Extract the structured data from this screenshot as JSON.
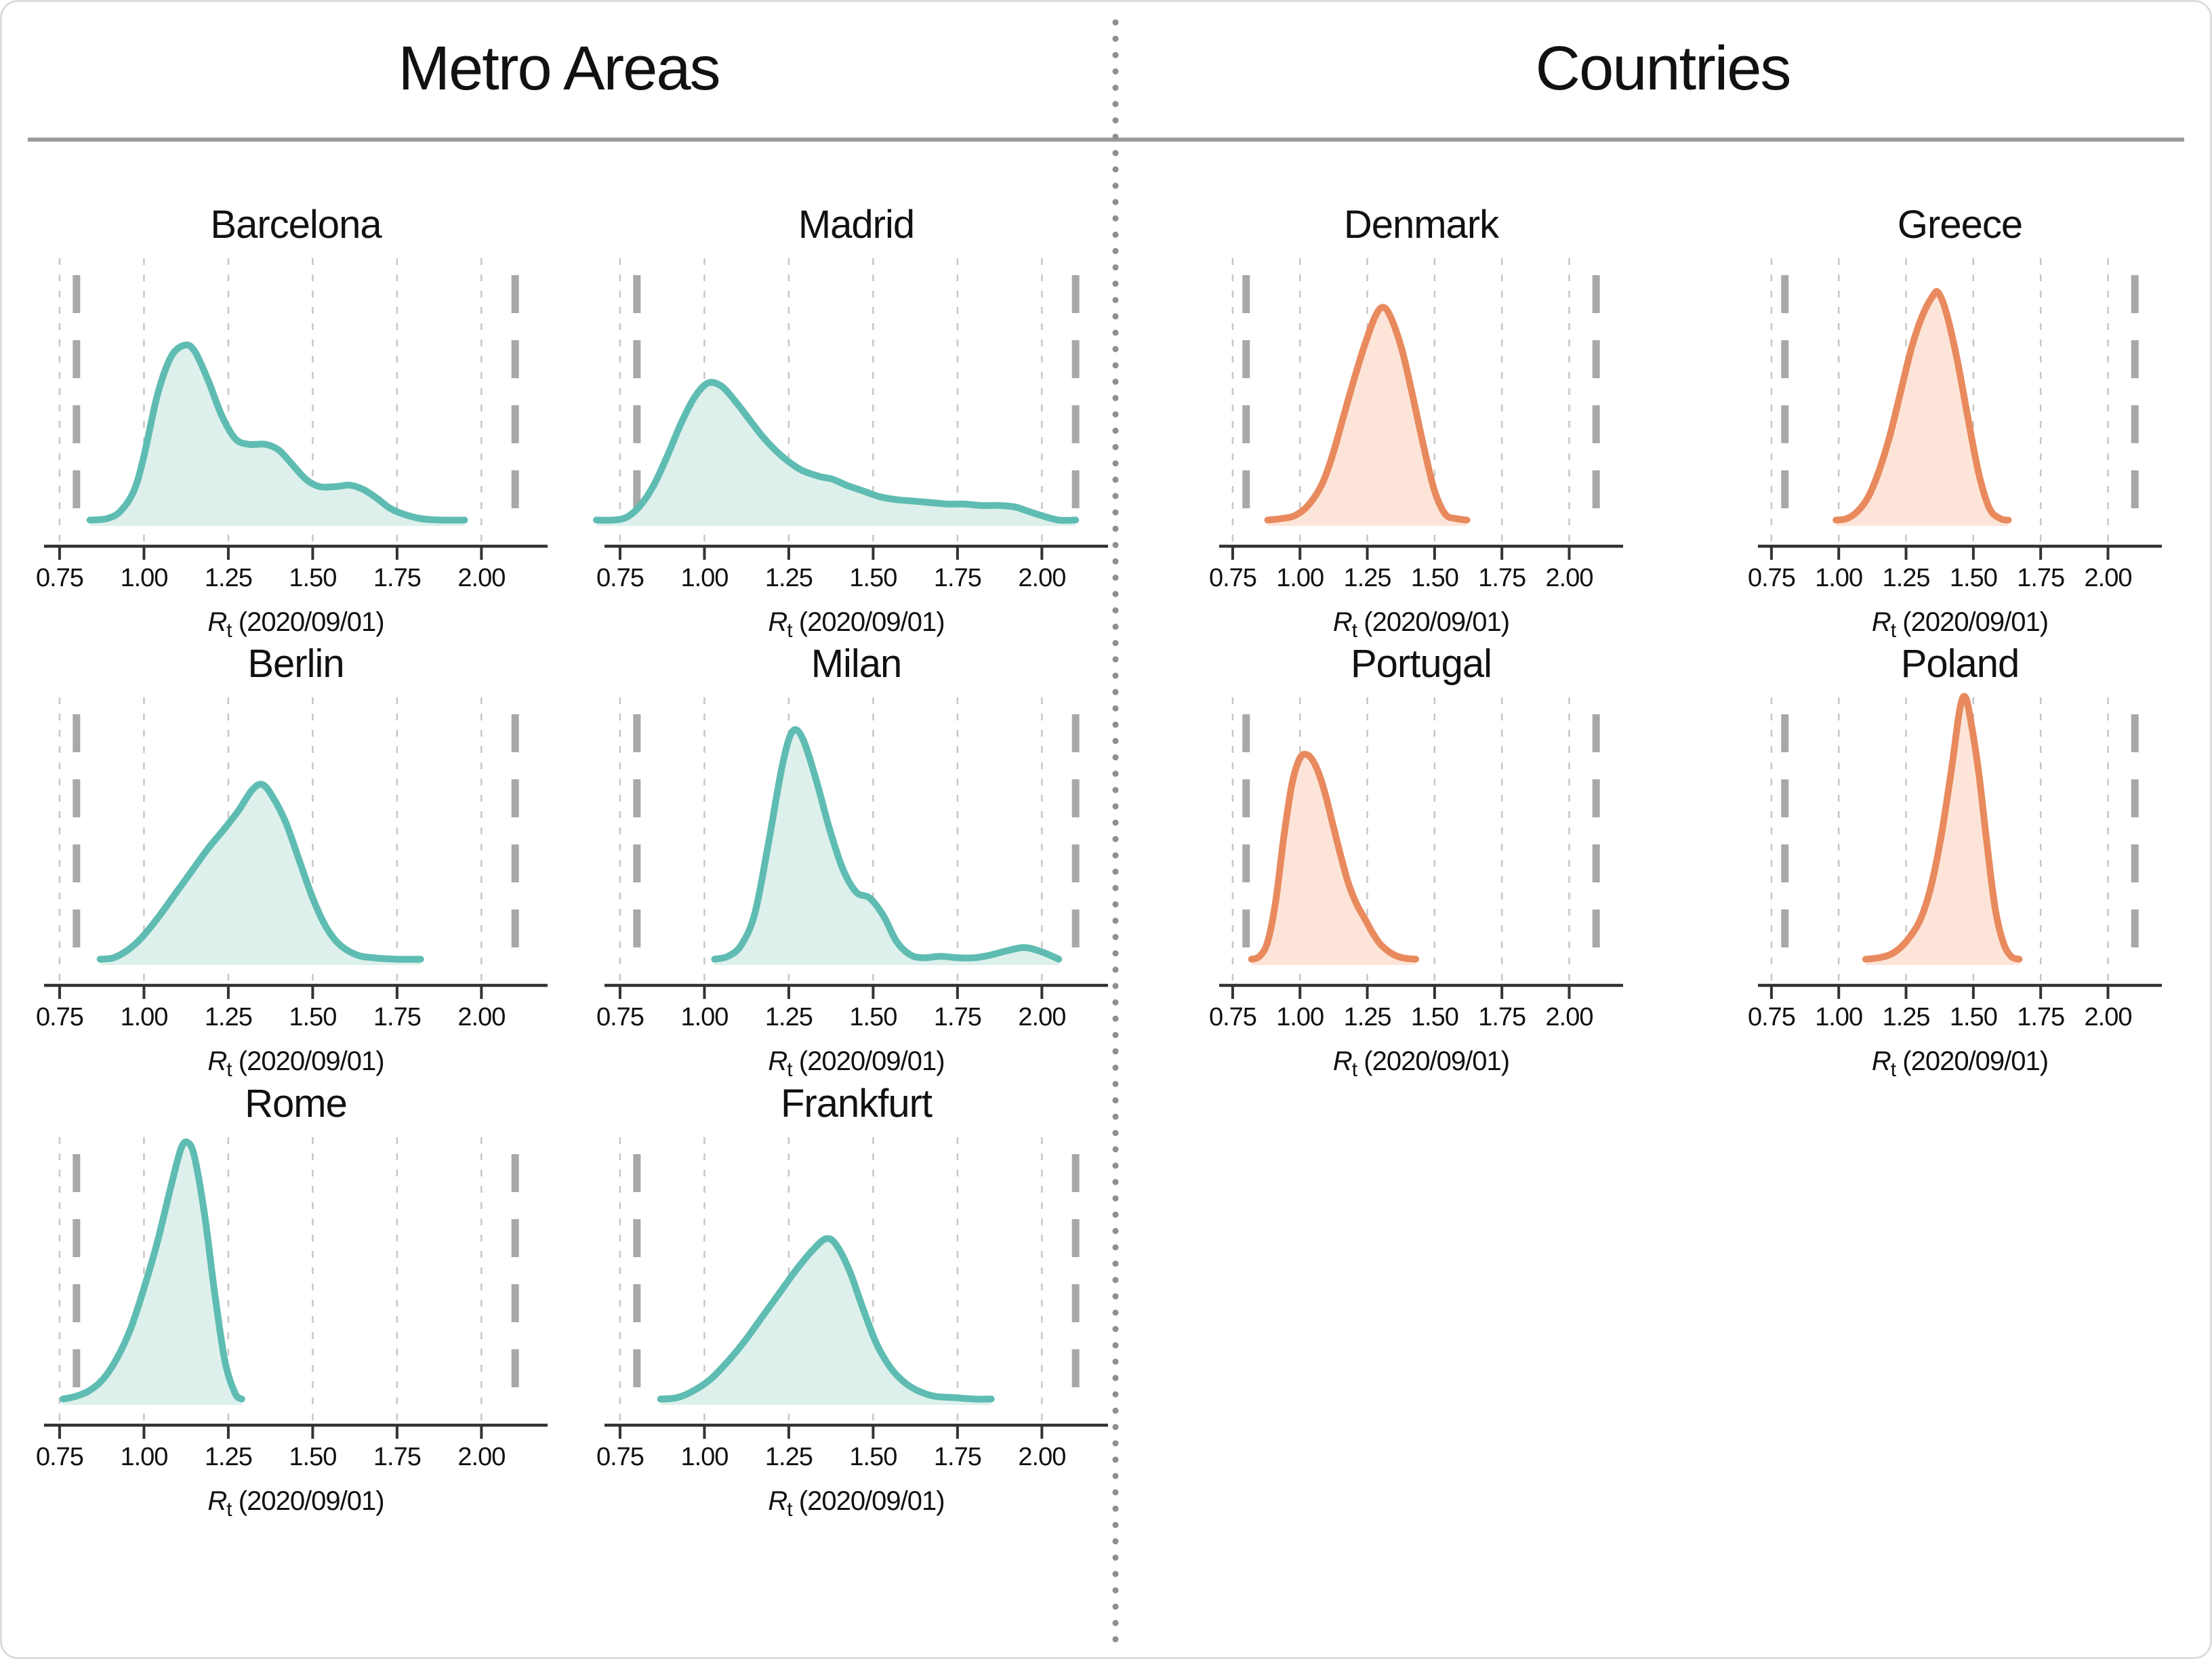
{
  "sections": {
    "left_title": "Metro Areas",
    "right_title": "Countries"
  },
  "colors": {
    "metro_line": "#5fbcb2",
    "metro_fill": "#ddf0ec",
    "country_line": "#e88a5e",
    "country_fill": "#fce5d8",
    "grid": "#c6c6c6",
    "reference": "#a8a8a8",
    "axis": "#333333",
    "text": "#111111",
    "rule": "#9b9b9b",
    "divider": "#8f8f8f"
  },
  "axis": {
    "xlabel_symbol": "R",
    "xlabel_subscript": "t",
    "xlabel_rest": " (2020/09/01)",
    "xlabel_full": "Rt (2020/09/01)",
    "ticks": [
      {
        "value": 0.75,
        "label": "0.75"
      },
      {
        "value": 1.0,
        "label": "1.00"
      },
      {
        "value": 1.25,
        "label": "1.25"
      },
      {
        "value": 1.5,
        "label": "1.50"
      },
      {
        "value": 1.75,
        "label": "1.75"
      },
      {
        "value": 2.0,
        "label": "2.00"
      }
    ],
    "reference_values": [
      0.8,
      2.1
    ],
    "xmin": 0.72,
    "xmax": 2.18,
    "grid": true
  },
  "chart_data": [
    {
      "type": "area",
      "title": "Barcelona",
      "group": "metro",
      "col": 0,
      "row": 0,
      "xlabel": "Rt (2020/09/01)",
      "points": [
        [
          0.84,
          0.02
        ],
        [
          0.89,
          0.025
        ],
        [
          0.93,
          0.05
        ],
        [
          0.97,
          0.12
        ],
        [
          1.0,
          0.24
        ],
        [
          1.04,
          0.45
        ],
        [
          1.08,
          0.58
        ],
        [
          1.12,
          0.62
        ],
        [
          1.15,
          0.6
        ],
        [
          1.19,
          0.5
        ],
        [
          1.23,
          0.38
        ],
        [
          1.27,
          0.3
        ],
        [
          1.31,
          0.28
        ],
        [
          1.36,
          0.28
        ],
        [
          1.4,
          0.26
        ],
        [
          1.44,
          0.21
        ],
        [
          1.48,
          0.16
        ],
        [
          1.52,
          0.135
        ],
        [
          1.57,
          0.135
        ],
        [
          1.61,
          0.14
        ],
        [
          1.65,
          0.125
        ],
        [
          1.69,
          0.095
        ],
        [
          1.73,
          0.06
        ],
        [
          1.77,
          0.04
        ],
        [
          1.82,
          0.025
        ],
        [
          1.88,
          0.02
        ],
        [
          1.95,
          0.02
        ]
      ]
    },
    {
      "type": "area",
      "title": "Madrid",
      "group": "metro",
      "col": 1,
      "row": 0,
      "xlabel": "Rt (2020/09/01)",
      "points": [
        [
          0.68,
          0.02
        ],
        [
          0.73,
          0.02
        ],
        [
          0.77,
          0.03
        ],
        [
          0.81,
          0.07
        ],
        [
          0.85,
          0.14
        ],
        [
          0.89,
          0.24
        ],
        [
          0.93,
          0.35
        ],
        [
          0.97,
          0.44
        ],
        [
          1.01,
          0.49
        ],
        [
          1.05,
          0.48
        ],
        [
          1.09,
          0.43
        ],
        [
          1.13,
          0.37
        ],
        [
          1.17,
          0.31
        ],
        [
          1.21,
          0.26
        ],
        [
          1.25,
          0.22
        ],
        [
          1.29,
          0.19
        ],
        [
          1.34,
          0.17
        ],
        [
          1.38,
          0.16
        ],
        [
          1.42,
          0.14
        ],
        [
          1.47,
          0.12
        ],
        [
          1.52,
          0.1
        ],
        [
          1.57,
          0.09
        ],
        [
          1.62,
          0.085
        ],
        [
          1.67,
          0.08
        ],
        [
          1.72,
          0.075
        ],
        [
          1.77,
          0.075
        ],
        [
          1.82,
          0.07
        ],
        [
          1.87,
          0.07
        ],
        [
          1.92,
          0.065
        ],
        [
          1.96,
          0.05
        ],
        [
          2.0,
          0.035
        ],
        [
          2.05,
          0.02
        ],
        [
          2.1,
          0.02
        ]
      ]
    },
    {
      "type": "area",
      "title": "Berlin",
      "group": "metro",
      "col": 0,
      "row": 1,
      "xlabel": "Rt (2020/09/01)",
      "points": [
        [
          0.87,
          0.02
        ],
        [
          0.91,
          0.025
        ],
        [
          0.95,
          0.05
        ],
        [
          0.99,
          0.09
        ],
        [
          1.04,
          0.16
        ],
        [
          1.09,
          0.24
        ],
        [
          1.14,
          0.32
        ],
        [
          1.19,
          0.4
        ],
        [
          1.24,
          0.47
        ],
        [
          1.28,
          0.53
        ],
        [
          1.32,
          0.6
        ],
        [
          1.35,
          0.62
        ],
        [
          1.38,
          0.58
        ],
        [
          1.42,
          0.49
        ],
        [
          1.46,
          0.36
        ],
        [
          1.5,
          0.23
        ],
        [
          1.54,
          0.13
        ],
        [
          1.58,
          0.07
        ],
        [
          1.63,
          0.035
        ],
        [
          1.68,
          0.025
        ],
        [
          1.75,
          0.02
        ],
        [
          1.82,
          0.02
        ]
      ]
    },
    {
      "type": "area",
      "title": "Milan",
      "group": "metro",
      "col": 1,
      "row": 1,
      "xlabel": "Rt (2020/09/01)",
      "points": [
        [
          1.03,
          0.02
        ],
        [
          1.07,
          0.03
        ],
        [
          1.11,
          0.07
        ],
        [
          1.15,
          0.18
        ],
        [
          1.19,
          0.42
        ],
        [
          1.23,
          0.68
        ],
        [
          1.26,
          0.8
        ],
        [
          1.29,
          0.78
        ],
        [
          1.33,
          0.64
        ],
        [
          1.37,
          0.47
        ],
        [
          1.41,
          0.33
        ],
        [
          1.45,
          0.25
        ],
        [
          1.49,
          0.23
        ],
        [
          1.53,
          0.17
        ],
        [
          1.57,
          0.08
        ],
        [
          1.61,
          0.035
        ],
        [
          1.65,
          0.025
        ],
        [
          1.7,
          0.03
        ],
        [
          1.75,
          0.025
        ],
        [
          1.8,
          0.025
        ],
        [
          1.85,
          0.035
        ],
        [
          1.9,
          0.05
        ],
        [
          1.95,
          0.06
        ],
        [
          2.0,
          0.045
        ],
        [
          2.05,
          0.02
        ]
      ]
    },
    {
      "type": "area",
      "title": "Rome",
      "group": "metro",
      "col": 0,
      "row": 2,
      "xlabel": "Rt (2020/09/01)",
      "points": [
        [
          0.76,
          0.02
        ],
        [
          0.8,
          0.03
        ],
        [
          0.84,
          0.05
        ],
        [
          0.88,
          0.09
        ],
        [
          0.92,
          0.16
        ],
        [
          0.96,
          0.26
        ],
        [
          1.0,
          0.4
        ],
        [
          1.04,
          0.56
        ],
        [
          1.08,
          0.75
        ],
        [
          1.11,
          0.88
        ],
        [
          1.13,
          0.9
        ],
        [
          1.15,
          0.85
        ],
        [
          1.18,
          0.65
        ],
        [
          1.21,
          0.38
        ],
        [
          1.24,
          0.15
        ],
        [
          1.27,
          0.04
        ],
        [
          1.29,
          0.02
        ]
      ]
    },
    {
      "type": "area",
      "title": "Frankfurt",
      "group": "metro",
      "col": 1,
      "row": 2,
      "xlabel": "Rt (2020/09/01)",
      "points": [
        [
          0.87,
          0.02
        ],
        [
          0.92,
          0.025
        ],
        [
          0.97,
          0.05
        ],
        [
          1.02,
          0.09
        ],
        [
          1.07,
          0.15
        ],
        [
          1.12,
          0.22
        ],
        [
          1.17,
          0.3
        ],
        [
          1.22,
          0.38
        ],
        [
          1.27,
          0.46
        ],
        [
          1.32,
          0.53
        ],
        [
          1.36,
          0.57
        ],
        [
          1.39,
          0.55
        ],
        [
          1.43,
          0.46
        ],
        [
          1.47,
          0.33
        ],
        [
          1.51,
          0.21
        ],
        [
          1.55,
          0.13
        ],
        [
          1.59,
          0.08
        ],
        [
          1.63,
          0.05
        ],
        [
          1.68,
          0.03
        ],
        [
          1.74,
          0.025
        ],
        [
          1.8,
          0.02
        ],
        [
          1.85,
          0.02
        ]
      ]
    },
    {
      "type": "area",
      "title": "Denmark",
      "group": "country",
      "col": 2,
      "row": 0,
      "xlabel": "Rt (2020/09/01)",
      "points": [
        [
          0.88,
          0.02
        ],
        [
          0.93,
          0.025
        ],
        [
          0.98,
          0.035
        ],
        [
          1.03,
          0.07
        ],
        [
          1.08,
          0.14
        ],
        [
          1.12,
          0.24
        ],
        [
          1.16,
          0.37
        ],
        [
          1.2,
          0.5
        ],
        [
          1.24,
          0.62
        ],
        [
          1.28,
          0.72
        ],
        [
          1.31,
          0.75
        ],
        [
          1.34,
          0.71
        ],
        [
          1.38,
          0.6
        ],
        [
          1.42,
          0.44
        ],
        [
          1.46,
          0.27
        ],
        [
          1.5,
          0.12
        ],
        [
          1.54,
          0.04
        ],
        [
          1.58,
          0.025
        ],
        [
          1.62,
          0.02
        ]
      ]
    },
    {
      "type": "area",
      "title": "Greece",
      "group": "country",
      "col": 3,
      "row": 0,
      "xlabel": "Rt (2020/09/01)",
      "points": [
        [
          0.99,
          0.02
        ],
        [
          1.03,
          0.025
        ],
        [
          1.07,
          0.05
        ],
        [
          1.11,
          0.1
        ],
        [
          1.15,
          0.19
        ],
        [
          1.19,
          0.31
        ],
        [
          1.23,
          0.46
        ],
        [
          1.27,
          0.61
        ],
        [
          1.31,
          0.72
        ],
        [
          1.35,
          0.79
        ],
        [
          1.37,
          0.8
        ],
        [
          1.4,
          0.73
        ],
        [
          1.44,
          0.57
        ],
        [
          1.48,
          0.37
        ],
        [
          1.52,
          0.18
        ],
        [
          1.56,
          0.06
        ],
        [
          1.6,
          0.025
        ],
        [
          1.63,
          0.02
        ]
      ]
    },
    {
      "type": "area",
      "title": "Portugal",
      "group": "country",
      "col": 2,
      "row": 1,
      "xlabel": "Rt (2020/09/01)",
      "points": [
        [
          0.82,
          0.02
        ],
        [
          0.85,
          0.03
        ],
        [
          0.88,
          0.08
        ],
        [
          0.91,
          0.22
        ],
        [
          0.94,
          0.44
        ],
        [
          0.97,
          0.62
        ],
        [
          1.0,
          0.71
        ],
        [
          1.03,
          0.72
        ],
        [
          1.06,
          0.68
        ],
        [
          1.09,
          0.6
        ],
        [
          1.12,
          0.49
        ],
        [
          1.15,
          0.38
        ],
        [
          1.18,
          0.28
        ],
        [
          1.21,
          0.21
        ],
        [
          1.24,
          0.16
        ],
        [
          1.27,
          0.11
        ],
        [
          1.3,
          0.07
        ],
        [
          1.34,
          0.04
        ],
        [
          1.38,
          0.025
        ],
        [
          1.43,
          0.02
        ]
      ]
    },
    {
      "type": "area",
      "title": "Poland",
      "group": "country",
      "col": 3,
      "row": 1,
      "xlabel": "Rt (2020/09/01)",
      "points": [
        [
          1.1,
          0.02
        ],
        [
          1.15,
          0.025
        ],
        [
          1.2,
          0.04
        ],
        [
          1.25,
          0.08
        ],
        [
          1.3,
          0.15
        ],
        [
          1.34,
          0.26
        ],
        [
          1.38,
          0.44
        ],
        [
          1.42,
          0.68
        ],
        [
          1.45,
          0.88
        ],
        [
          1.47,
          0.92
        ],
        [
          1.49,
          0.84
        ],
        [
          1.52,
          0.66
        ],
        [
          1.55,
          0.42
        ],
        [
          1.58,
          0.2
        ],
        [
          1.61,
          0.08
        ],
        [
          1.64,
          0.03
        ],
        [
          1.67,
          0.02
        ]
      ]
    }
  ]
}
